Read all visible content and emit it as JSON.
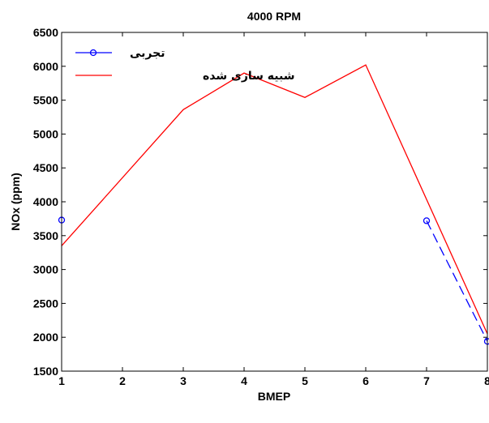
{
  "chart_data": {
    "type": "line",
    "title": "4000 RPM",
    "xlabel": "BMEP",
    "ylabel": "NOx (ppm)",
    "xlim": [
      1,
      8
    ],
    "ylim": [
      1500,
      6500
    ],
    "xticks": [
      1,
      2,
      3,
      4,
      5,
      6,
      7,
      8
    ],
    "yticks": [
      1500,
      2000,
      2500,
      3000,
      3500,
      4000,
      4500,
      5000,
      5500,
      6000,
      6500
    ],
    "grid": false,
    "legend_position": "top-left",
    "series": [
      {
        "name": "تجربی",
        "color": "#0000ff",
        "line_style": "dashed",
        "marker": "circle",
        "segments": [
          [
            {
              "x": 1,
              "y": 3730
            }
          ],
          [
            {
              "x": 7,
              "y": 3720
            },
            {
              "x": 8,
              "y": 1940
            }
          ]
        ]
      },
      {
        "name": "شبیه سازی شده",
        "color": "#ff0000",
        "line_style": "solid",
        "marker": "none",
        "segments": [
          [
            {
              "x": 1,
              "y": 3350
            },
            {
              "x": 3,
              "y": 5360
            },
            {
              "x": 4,
              "y": 5900
            },
            {
              "x": 5,
              "y": 5540
            },
            {
              "x": 6,
              "y": 6020
            },
            {
              "x": 8,
              "y": 2050
            }
          ]
        ]
      }
    ]
  }
}
